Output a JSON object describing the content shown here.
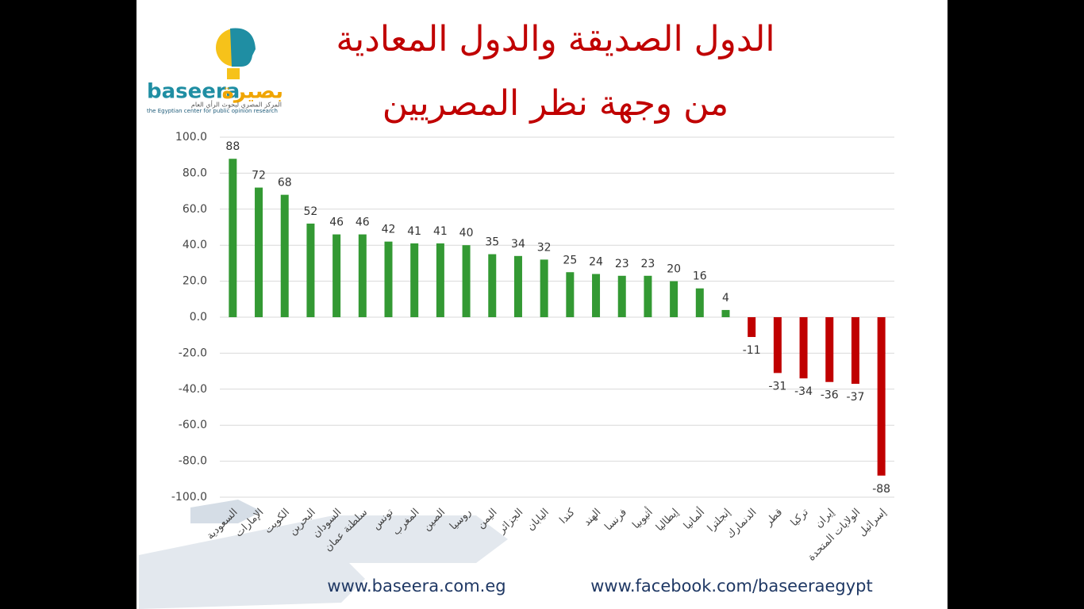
{
  "logo": {
    "name_latin": "baseera",
    "name_arabic": "بصيرة",
    "tagline_arabic": "المركز المصري لبحوث الرأي العام",
    "tagline_english": "the Egyptian center for public opinion research"
  },
  "chart_data": {
    "type": "bar",
    "title_lines": [
      "الدول الصديقة والدول المعادية",
      "من وجهة نظر المصريين"
    ],
    "categories": [
      "السعودية",
      "الإمارات",
      "الكويت",
      "البحرين",
      "السودان",
      "سلطنة عمان",
      "تونس",
      "المغرب",
      "الصين",
      "روسيا",
      "اليمن",
      "الجزائر",
      "اليابان",
      "كندا",
      "الهند",
      "فرنسا",
      "أثيوبيا",
      "إيطاليا",
      "ألمانيا",
      "إنجلترا",
      "الدنمارك",
      "قطر",
      "تركيا",
      "إيران",
      "الولايات المتحدة",
      "إسرائيل"
    ],
    "values": [
      88,
      72,
      68,
      52,
      46,
      46,
      42,
      41,
      41,
      40,
      35,
      34,
      32,
      25,
      24,
      23,
      23,
      20,
      16,
      4,
      -11,
      -31,
      -34,
      -36,
      -37,
      -88
    ],
    "positive_color": "#339933",
    "negative_color": "#c00000",
    "ylim": [
      -100,
      100
    ],
    "yticks": [
      {
        "value": -100,
        "label": "-100.0"
      },
      {
        "value": -80,
        "label": "-80.0"
      },
      {
        "value": -60,
        "label": "-60.0"
      },
      {
        "value": -40,
        "label": "-40.0"
      },
      {
        "value": -20,
        "label": "-20.0"
      },
      {
        "value": 0,
        "label": "0.0"
      },
      {
        "value": 20,
        "label": "20.0"
      },
      {
        "value": 40,
        "label": "40.0"
      },
      {
        "value": 60,
        "label": "60.0"
      },
      {
        "value": 80,
        "label": "80.0"
      },
      {
        "value": 100,
        "label": "100.0"
      }
    ],
    "grid": true
  },
  "footer": {
    "website": "www.baseera.com.eg",
    "facebook": "www.facebook.com/baseeraegypt"
  }
}
